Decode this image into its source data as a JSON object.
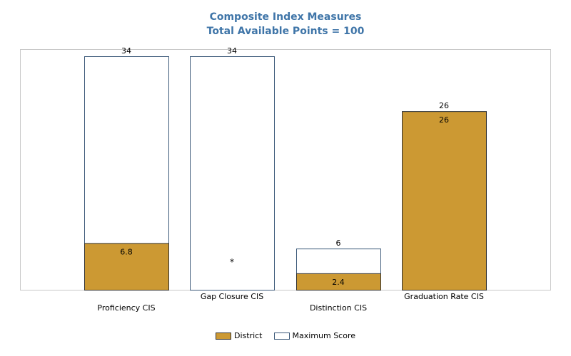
{
  "chart_data": {
    "type": "bar",
    "title": "Composite Index Measures",
    "subtitle": "Total Available Points = 100",
    "categories": [
      "Proficiency CIS",
      "Gap Closure CIS",
      "Distinction CIS",
      "Graduation Rate CIS"
    ],
    "series": [
      {
        "name": "District",
        "values": [
          6.8,
          null,
          2.4,
          26
        ],
        "labels": [
          "6.8",
          "*",
          "2.4",
          "26"
        ],
        "color": "#cc9933"
      },
      {
        "name": "Maximum Score",
        "values": [
          34,
          34,
          6,
          26
        ],
        "labels": [
          "34",
          "34",
          "6",
          "26"
        ],
        "color": "#ffffff",
        "border": "#3d5a7a"
      }
    ],
    "ylim": [
      0,
      34
    ],
    "grid": false,
    "legend": "bottom"
  }
}
